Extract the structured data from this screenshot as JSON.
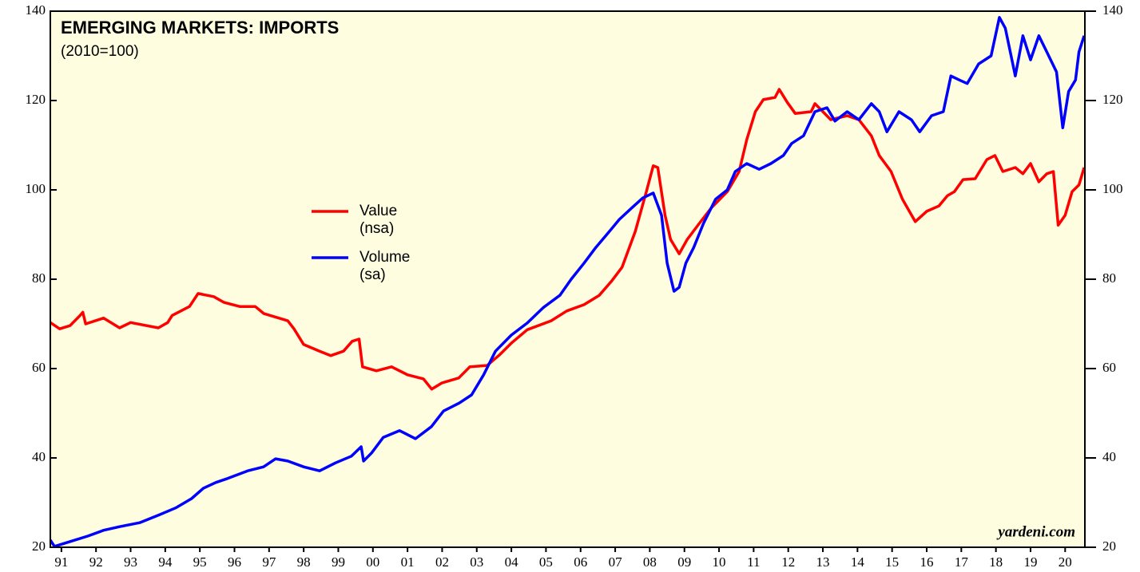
{
  "chart_data": {
    "type": "line",
    "title": "EMERGING MARKETS: IMPORTS",
    "subtitle": "(2010=100)",
    "footnote": "yardeni.com",
    "xlim": [
      1991.18,
      2021.07
    ],
    "xticks": [
      {
        "value": 1991.5,
        "label": "91"
      },
      {
        "value": 1992.5,
        "label": "92"
      },
      {
        "value": 1993.5,
        "label": "93"
      },
      {
        "value": 1994.5,
        "label": "94"
      },
      {
        "value": 1995.5,
        "label": "95"
      },
      {
        "value": 1996.5,
        "label": "96"
      },
      {
        "value": 1997.5,
        "label": "97"
      },
      {
        "value": 1998.5,
        "label": "98"
      },
      {
        "value": 1999.5,
        "label": "99"
      },
      {
        "value": 2000.5,
        "label": "00"
      },
      {
        "value": 2001.5,
        "label": "01"
      },
      {
        "value": 2002.5,
        "label": "02"
      },
      {
        "value": 2003.5,
        "label": "03"
      },
      {
        "value": 2004.5,
        "label": "04"
      },
      {
        "value": 2005.5,
        "label": "05"
      },
      {
        "value": 2006.5,
        "label": "06"
      },
      {
        "value": 2007.5,
        "label": "07"
      },
      {
        "value": 2008.5,
        "label": "08"
      },
      {
        "value": 2009.5,
        "label": "09"
      },
      {
        "value": 2010.5,
        "label": "10"
      },
      {
        "value": 2011.5,
        "label": "11"
      },
      {
        "value": 2012.5,
        "label": "12"
      },
      {
        "value": 2013.5,
        "label": "13"
      },
      {
        "value": 2014.5,
        "label": "14"
      },
      {
        "value": 2015.5,
        "label": "15"
      },
      {
        "value": 2016.5,
        "label": "16"
      },
      {
        "value": 2017.5,
        "label": "17"
      },
      {
        "value": 2018.5,
        "label": "18"
      },
      {
        "value": 2019.5,
        "label": "19"
      },
      {
        "value": 2020.5,
        "label": "20"
      }
    ],
    "ylim": [
      20,
      140
    ],
    "yticks": [
      20,
      40,
      60,
      80,
      100,
      120,
      140
    ],
    "background": "#fefde0",
    "series": [
      {
        "name": "Value (nsa)",
        "color": "#ff0000",
        "x": [
          1991.18,
          1991.45,
          1991.75,
          1992.03,
          1992.12,
          1992.2,
          1992.72,
          1993.18,
          1993.5,
          1994.3,
          1994.57,
          1994.7,
          1995.2,
          1995.45,
          1995.9,
          1996.2,
          1996.65,
          1997.1,
          1997.35,
          1998.04,
          1998.22,
          1998.5,
          1998.96,
          1999.28,
          1999.65,
          1999.9,
          2000.1,
          2000.2,
          2000.6,
          2001.04,
          2001.5,
          2001.96,
          2002.2,
          2002.5,
          2002.98,
          2003.3,
          2003.8,
          2004.15,
          2004.5,
          2004.96,
          2005.65,
          2006.1,
          2006.6,
          2007.04,
          2007.4,
          2007.7,
          2008.08,
          2008.4,
          2008.6,
          2008.73,
          2008.94,
          2009.1,
          2009.35,
          2009.58,
          2009.93,
          2010.28,
          2010.74,
          2011.08,
          2011.3,
          2011.55,
          2011.78,
          2012.12,
          2012.24,
          2012.47,
          2012.7,
          2013.16,
          2013.27,
          2013.73,
          2014.2,
          2014.54,
          2014.9,
          2015.13,
          2015.47,
          2015.8,
          2016.17,
          2016.5,
          2016.85,
          2017.1,
          2017.3,
          2017.55,
          2017.9,
          2018.24,
          2018.47,
          2018.7,
          2019.06,
          2019.28,
          2019.5,
          2019.74,
          2019.97,
          2020.16,
          2020.3,
          2020.5,
          2020.7,
          2020.9,
          2021.05
        ],
        "values": [
          70.3,
          68.9,
          69.6,
          71.8,
          72.6,
          70.0,
          71.3,
          69.1,
          70.3,
          69.1,
          70.3,
          71.9,
          73.9,
          76.8,
          76.1,
          74.8,
          73.9,
          73.9,
          72.3,
          70.7,
          68.9,
          65.4,
          63.9,
          62.9,
          63.9,
          66.1,
          66.6,
          60.4,
          59.5,
          60.4,
          58.6,
          57.7,
          55.4,
          56.8,
          57.9,
          60.4,
          60.7,
          63.0,
          65.7,
          68.7,
          70.7,
          72.9,
          74.3,
          76.4,
          79.6,
          82.7,
          90.7,
          99.6,
          105.4,
          105,
          94.3,
          88.9,
          85.7,
          88.9,
          92.5,
          96,
          99.6,
          104.1,
          111.2,
          117.5,
          120.2,
          120.7,
          122.5,
          119.6,
          117.1,
          117.5,
          119.3,
          115.7,
          116.6,
          115.7,
          112.1,
          107.7,
          104.1,
          97.9,
          92.9,
          95.2,
          96.4,
          98.7,
          99.6,
          102.3,
          102.5,
          106.8,
          107.7,
          104.1,
          105,
          103.6,
          105.9,
          101.8,
          103.6,
          104.1,
          92.1,
          94.3,
          99.6,
          101.1,
          105
        ]
      },
      {
        "name": "Volume (sa)",
        "color": "#0000ff",
        "x": [
          1991.18,
          1991.3,
          1991.8,
          1992.26,
          1992.72,
          1993.18,
          1993.76,
          1994.34,
          1994.8,
          1995.26,
          1995.6,
          1995.96,
          1996.3,
          1996.88,
          1997.34,
          1997.69,
          1998.04,
          1998.5,
          1998.96,
          1999.42,
          1999.88,
          2000.16,
          2000.23,
          2000.46,
          2000.8,
          2001.27,
          2001.73,
          2002.19,
          2002.54,
          2003.0,
          2003.35,
          2003.7,
          2004.04,
          2004.5,
          2004.96,
          2005.43,
          2005.9,
          2006.23,
          2006.6,
          2006.94,
          2007.3,
          2007.62,
          2008.0,
          2008.3,
          2008.6,
          2008.84,
          2009.0,
          2009.2,
          2009.35,
          2009.54,
          2009.77,
          2010.05,
          2010.4,
          2010.74,
          2010.97,
          2011.3,
          2011.66,
          2012.0,
          2012.36,
          2012.6,
          2012.94,
          2013.27,
          2013.62,
          2013.85,
          2014.2,
          2014.54,
          2014.9,
          2015.13,
          2015.35,
          2015.7,
          2016.06,
          2016.3,
          2016.64,
          2016.98,
          2017.2,
          2017.44,
          2017.67,
          2018.0,
          2018.36,
          2018.6,
          2018.77,
          2019.06,
          2019.28,
          2019.5,
          2019.74,
          2019.97,
          2020.25,
          2020.43,
          2020.6,
          2020.8,
          2020.9,
          2021.05
        ],
        "values": [
          21.6,
          20.2,
          21.4,
          22.5,
          23.8,
          24.6,
          25.5,
          27.3,
          28.8,
          30.9,
          33.2,
          34.5,
          35.4,
          37.1,
          38,
          39.8,
          39.3,
          38,
          37.1,
          38.9,
          40.4,
          42.5,
          39.3,
          41.1,
          44.6,
          46.1,
          44.3,
          47,
          50.5,
          52.3,
          54.1,
          58.6,
          63.9,
          67.5,
          70.2,
          73.7,
          76.4,
          80,
          83.6,
          87.1,
          90.4,
          93.4,
          96.1,
          98.2,
          99.3,
          94.3,
          83.6,
          77.3,
          78.2,
          83.6,
          87.1,
          92.5,
          97.9,
          100,
          104.1,
          105.9,
          104.6,
          105.9,
          107.7,
          110.4,
          112.1,
          117.5,
          118.4,
          115.4,
          117.5,
          115.7,
          119.3,
          117.5,
          113,
          117.5,
          115.7,
          113,
          116.6,
          117.5,
          125.5,
          124.6,
          123.8,
          128.2,
          130,
          138.6,
          136.2,
          125.5,
          134.5,
          129.1,
          134.5,
          130.9,
          126.4,
          113.9,
          122,
          124.6,
          130.9,
          134.5
        ]
      }
    ]
  }
}
